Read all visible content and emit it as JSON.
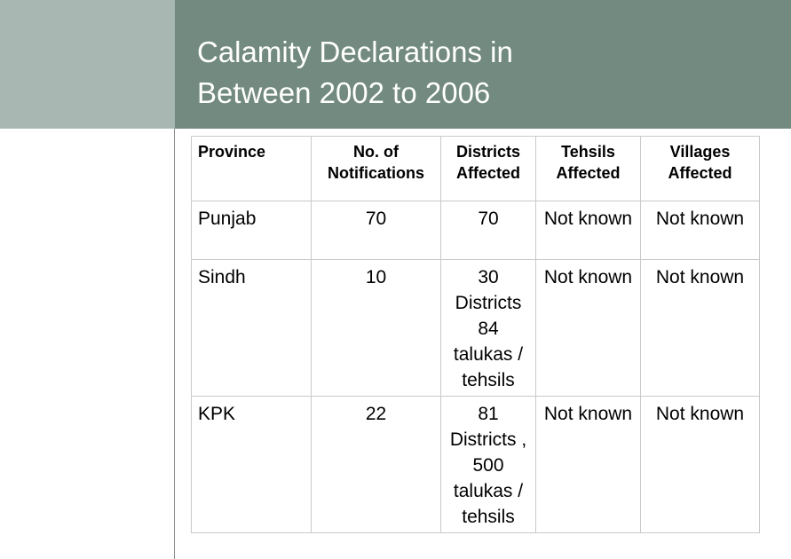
{
  "slide": {
    "title": "Calamity Declarations in\nBetween 2002 to 2006"
  },
  "colors": {
    "title_band": "#728a7f",
    "accent_block": "#a8b7b1",
    "title_text": "#ffffff",
    "table_border": "#c9c9c9"
  },
  "table": {
    "headers": {
      "province": "Province",
      "notifications": "No. of Notifications",
      "districts": "Districts Affected",
      "tehsils": "Tehsils Affected",
      "villages": "Villages Affected"
    },
    "rows": [
      {
        "province": "Punjab",
        "notifications": "70",
        "districts": "70",
        "tehsils": "Not known",
        "villages": "Not known"
      },
      {
        "province": "Sindh",
        "notifications": "10",
        "districts": "30 Districts 84 talukas / tehsils",
        "tehsils": "Not known",
        "villages": "Not known"
      },
      {
        "province": "KPK",
        "notifications": "22",
        "districts": "81 Districts , 500 talukas / tehsils",
        "tehsils": "Not known",
        "villages": "Not known"
      }
    ]
  }
}
